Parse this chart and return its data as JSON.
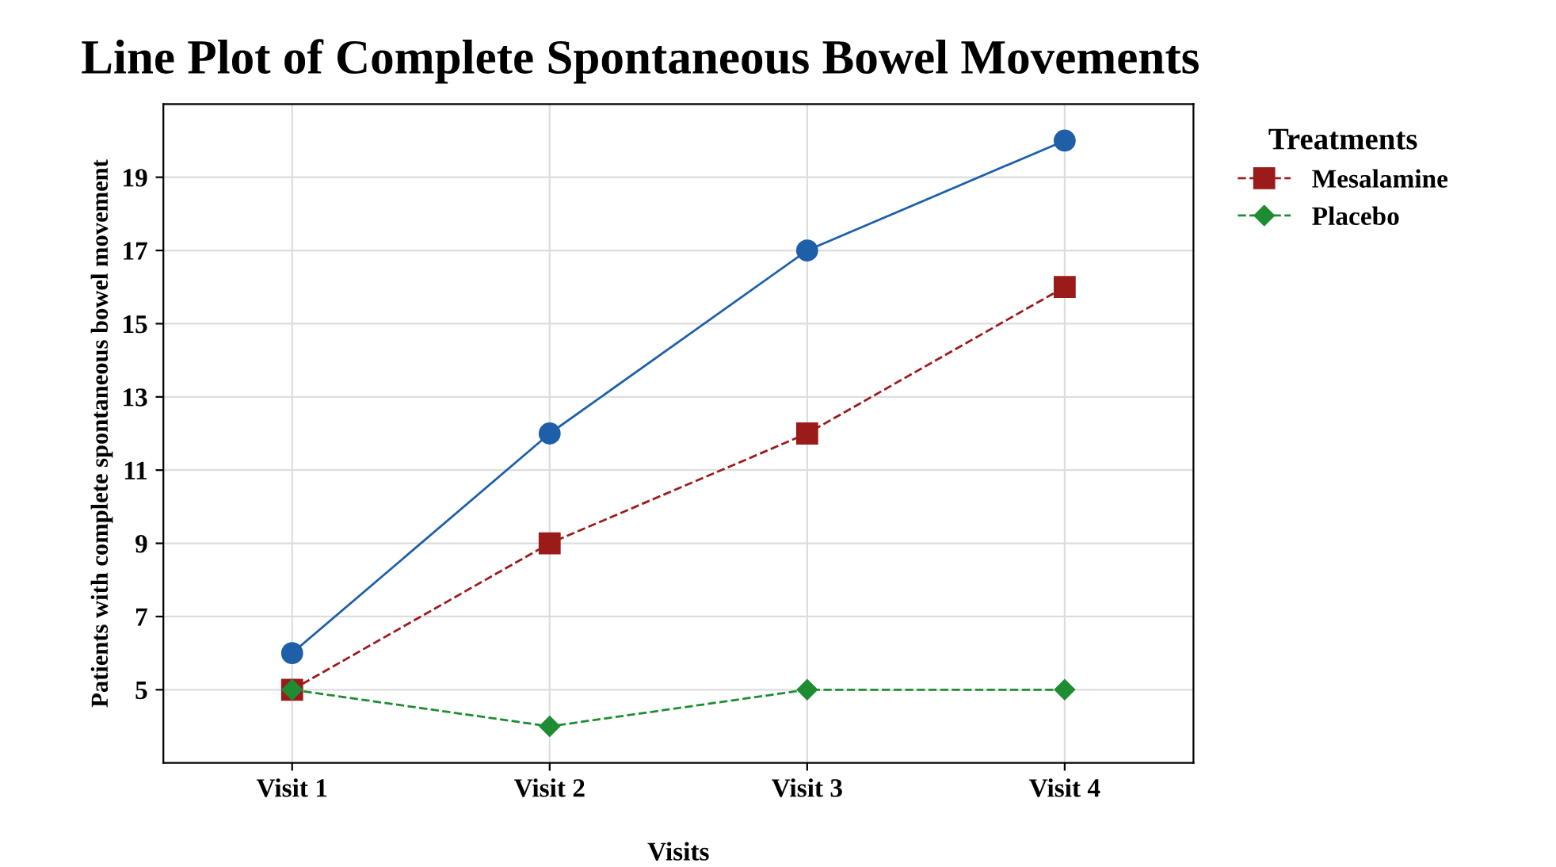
{
  "chart_data": {
    "type": "line",
    "title": "Line Plot of Complete Spontaneous Bowel Movements",
    "xlabel": "Visits",
    "ylabel": "Patients with complete spontaneous bowel movement",
    "legend_title": "Treatments",
    "categories": [
      "Visit 1",
      "Visit 2",
      "Visit 3",
      "Visit 4"
    ],
    "series": [
      {
        "color": "#1f5fa8",
        "marker": "circle",
        "line_style": "solid",
        "values": [
          6,
          12,
          17,
          20
        ]
      },
      {
        "name": "Mesalamine",
        "color": "#9b1b1b",
        "marker": "square",
        "line_style": "dashed",
        "values": [
          5,
          9,
          12,
          16
        ]
      },
      {
        "name": "Placebo",
        "color": "#1e8c32",
        "marker": "diamond",
        "line_style": "dashed",
        "values": [
          5,
          4,
          5,
          5
        ]
      }
    ],
    "ylim": [
      3,
      21
    ],
    "yticks": [
      5,
      7,
      9,
      11,
      13,
      15,
      17,
      19
    ],
    "grid": true,
    "legend": "top right"
  }
}
